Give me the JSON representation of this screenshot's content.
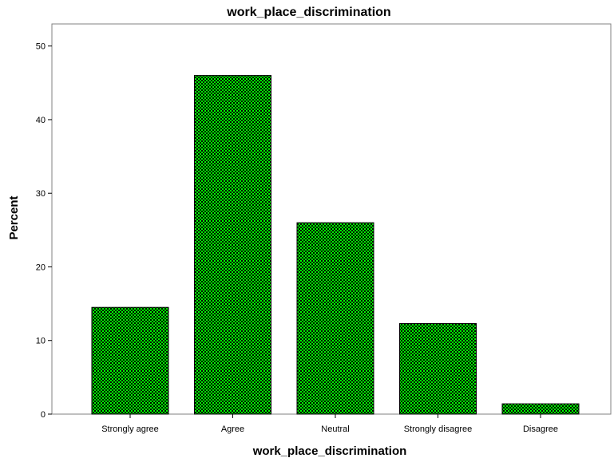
{
  "chart_data": {
    "type": "bar",
    "title": "work_place_discrimination",
    "xlabel": "work_place_discrimination",
    "ylabel": "Percent",
    "categories": [
      "Strongly agree",
      "Agree",
      "Neutral",
      "Strongly disagree",
      "Disagree"
    ],
    "values": [
      14.5,
      46.0,
      26.0,
      12.3,
      1.4
    ],
    "ylim": [
      0,
      53
    ],
    "yticks": [
      0,
      10,
      20,
      30,
      40,
      50
    ],
    "grid": false,
    "legend": "none",
    "bar_fill_colors": [
      "#00ff00",
      "#000000"
    ],
    "bar_stroke_color": "#000000",
    "frame_color": "#808080"
  }
}
